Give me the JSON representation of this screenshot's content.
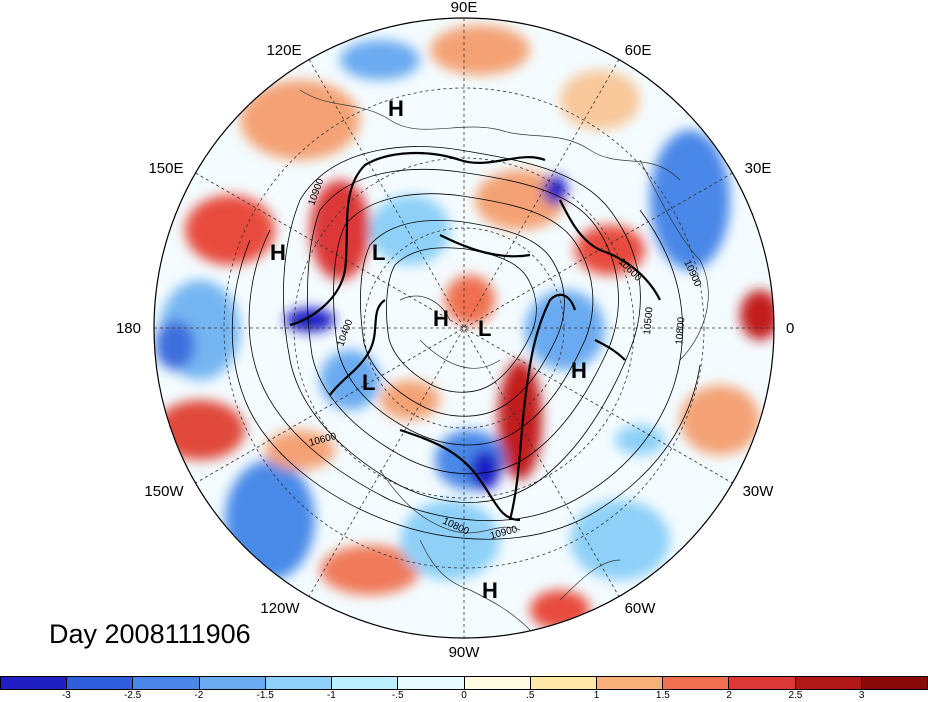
{
  "title": "Day 2008111906",
  "longitude_labels": [
    "90E",
    "60E",
    "30E",
    "0",
    "30W",
    "60W",
    "90W",
    "120W",
    "150W",
    "180",
    "150E",
    "120E"
  ],
  "pressure_centers": [
    {
      "type": "H",
      "lon_label": "near 95E"
    },
    {
      "type": "H",
      "lon_label": "near 175E"
    },
    {
      "type": "L",
      "lon_label": "near 145E"
    },
    {
      "type": "H",
      "lon_label": "pole"
    },
    {
      "type": "L",
      "lon_label": "pole"
    },
    {
      "type": "L",
      "lon_label": "near 160W"
    },
    {
      "type": "H",
      "lon_label": "near 20W"
    },
    {
      "type": "H",
      "lon_label": "near 90W"
    }
  ],
  "contour_labels": [
    "10900",
    "10600",
    "10400",
    "10900",
    "10800",
    "10500",
    "10600",
    "10800",
    "10900"
  ],
  "colorbar": {
    "tick_labels": [
      "-3",
      "-2.5",
      "-2",
      "-1.5",
      "-1",
      "-.5",
      "0",
      ".5",
      "1",
      "1.5",
      "2",
      "2.5",
      "3"
    ],
    "colors": [
      "#1f1fc4",
      "#2f5fdc",
      "#4a87e8",
      "#6aaaf0",
      "#8ed0f8",
      "#bdf0ff",
      "#e8fbff",
      "#fffbe0",
      "#ffe8a8",
      "#f8b07a",
      "#f07050",
      "#dc3838",
      "#b01818",
      "#8a0a0a"
    ]
  }
}
